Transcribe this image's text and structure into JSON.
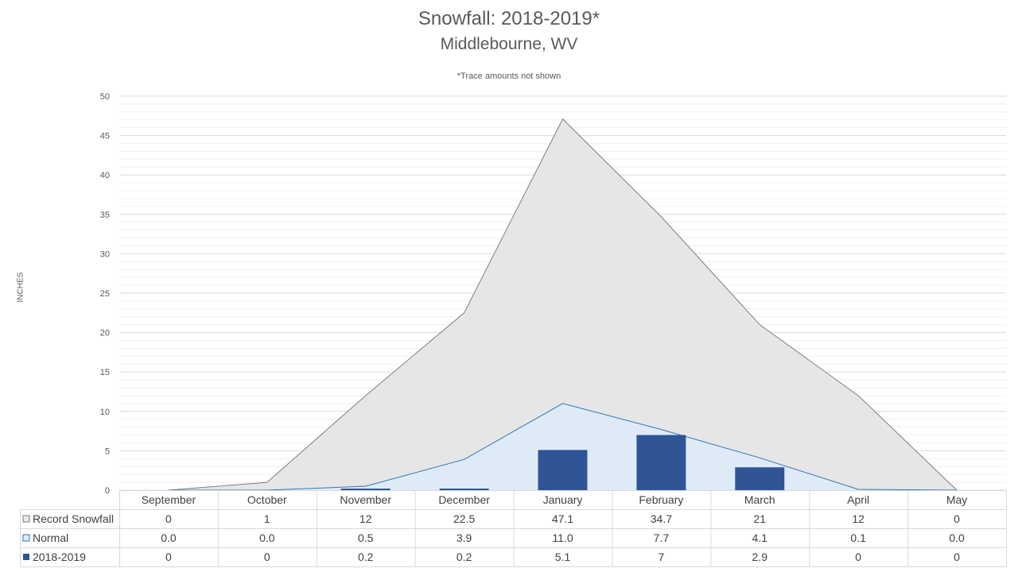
{
  "chart_data": {
    "type": "area",
    "title": "Snowfall: 2018-2019*",
    "subtitle": "Middlebourne, WV",
    "note": "*Trace amounts not shown",
    "ylabel": "INCHES",
    "ylim": [
      0,
      50
    ],
    "yticks": [
      "0",
      "5",
      "10",
      "15",
      "20",
      "25",
      "30",
      "35",
      "40",
      "45",
      "50"
    ],
    "ytick_values": [
      0,
      5,
      10,
      15,
      20,
      25,
      30,
      35,
      40,
      45,
      50
    ],
    "categories": [
      "September",
      "October",
      "November",
      "December",
      "January",
      "February",
      "March",
      "April",
      "May"
    ],
    "series": [
      {
        "name": "Record Snowfall",
        "kind": "area",
        "color": "#e6e6e6",
        "line_color": "#7f7f7f",
        "values": [
          0,
          1,
          12,
          22.5,
          47.1,
          34.7,
          21,
          12,
          0
        ],
        "labels": [
          "0",
          "1",
          "12",
          "22.5",
          "47.1",
          "34.7",
          "21",
          "12",
          "0"
        ]
      },
      {
        "name": "Normal",
        "kind": "area",
        "color": "#deebf7",
        "line_color": "#2e75b6",
        "values": [
          0.0,
          0.0,
          0.5,
          3.9,
          11.0,
          7.7,
          4.1,
          0.1,
          0.0
        ],
        "labels": [
          "0.0",
          "0.0",
          "0.5",
          "3.9",
          "11.0",
          "7.7",
          "4.1",
          "0.1",
          "0.0"
        ]
      },
      {
        "name": "2018-2019",
        "kind": "bar",
        "color": "#2f5597",
        "values": [
          0,
          0,
          0.2,
          0.2,
          5.1,
          7,
          2.9,
          0,
          0
        ],
        "labels": [
          "0",
          "0",
          "0.2",
          "0.2",
          "5.1",
          "7",
          "2.9",
          "0",
          "0"
        ]
      }
    ],
    "grid": true,
    "legend": "data-table"
  }
}
